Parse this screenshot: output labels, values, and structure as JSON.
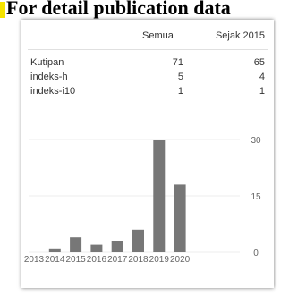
{
  "header": {
    "text": "For detail publication data"
  },
  "table": {
    "columns": [
      "Semua",
      "Sejak 2015"
    ],
    "rows": [
      {
        "label": "Kutipan",
        "all": "71",
        "since": "65"
      },
      {
        "label": "indeks-h",
        "all": "5",
        "since": "4"
      },
      {
        "label": "indeks-i10",
        "all": "1",
        "since": "1"
      }
    ]
  },
  "chart_data": {
    "type": "bar",
    "categories": [
      "2013",
      "2014",
      "2015",
      "2016",
      "2017",
      "2018",
      "2019",
      "2020"
    ],
    "values": [
      0,
      1,
      4,
      2,
      3,
      6,
      30,
      18
    ],
    "ylim": [
      0,
      30
    ],
    "yticks": [
      "0",
      "15",
      "30"
    ],
    "color": "#777777"
  }
}
